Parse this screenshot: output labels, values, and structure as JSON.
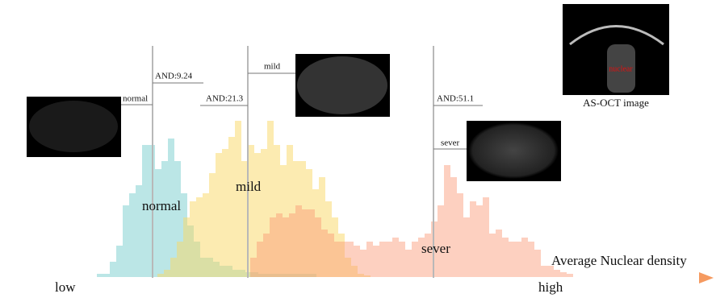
{
  "markers": [
    {
      "label": "normal",
      "value_text": "AND:9.24"
    },
    {
      "label": "mild",
      "value_text": "AND:21.3"
    },
    {
      "label": "sever",
      "value_text": "AND:51.1"
    }
  ],
  "regions": [
    "normal",
    "mild",
    "sever"
  ],
  "axis": {
    "title": "Average Nuclear density",
    "low": "low",
    "high": "high"
  },
  "inset": {
    "caption": "AS-OCT image",
    "label": "nuclear"
  }
}
